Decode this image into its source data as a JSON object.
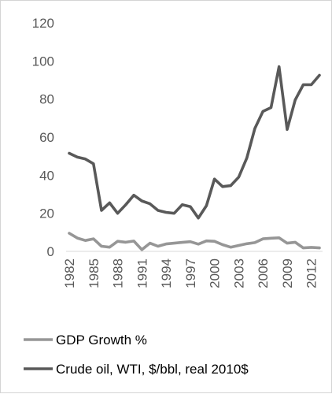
{
  "chart_data": {
    "type": "line",
    "title": "",
    "xlabel": "",
    "ylabel": "",
    "ylim": [
      0,
      120
    ],
    "yticks": [
      0,
      20,
      40,
      60,
      80,
      100,
      120
    ],
    "x": [
      1982,
      1983,
      1984,
      1985,
      1986,
      1987,
      1988,
      1989,
      1990,
      1991,
      1992,
      1993,
      1994,
      1995,
      1996,
      1997,
      1998,
      1999,
      2000,
      2001,
      2002,
      2003,
      2004,
      2005,
      2006,
      2007,
      2008,
      2009,
      2010,
      2011,
      2012,
      2013
    ],
    "xtick_labels": [
      "1982",
      "1985",
      "1988",
      "1991",
      "1994",
      "1997",
      "2000",
      "2003",
      "2006",
      "2009",
      "2012"
    ],
    "grid": false,
    "legend_position": "bottom",
    "series": [
      {
        "name": "GDP Growth %",
        "color": "#969696",
        "values": [
          9.5,
          7.0,
          5.7,
          6.6,
          2.7,
          2.2,
          5.3,
          4.8,
          5.4,
          0.9,
          4.3,
          2.7,
          3.9,
          4.3,
          4.7,
          5.1,
          3.8,
          5.5,
          5.3,
          3.5,
          2.2,
          3.1,
          4.0,
          4.6,
          6.6,
          6.9,
          7.1,
          4.3,
          4.8,
          1.8,
          2.1,
          1.8
        ]
      },
      {
        "name": "Crude oil, WTI, $/bbl, real 2010$",
        "color": "#595959",
        "values": [
          51.5,
          49.5,
          48.5,
          46.0,
          21.5,
          25.5,
          20.0,
          24.5,
          29.5,
          26.5,
          25.0,
          21.5,
          20.5,
          20.0,
          24.5,
          23.5,
          17.5,
          24.0,
          38.0,
          34.0,
          34.5,
          39.0,
          49.0,
          64.5,
          73.5,
          75.5,
          97.0,
          64.0,
          79.5,
          87.5,
          87.5,
          92.5
        ]
      }
    ]
  }
}
